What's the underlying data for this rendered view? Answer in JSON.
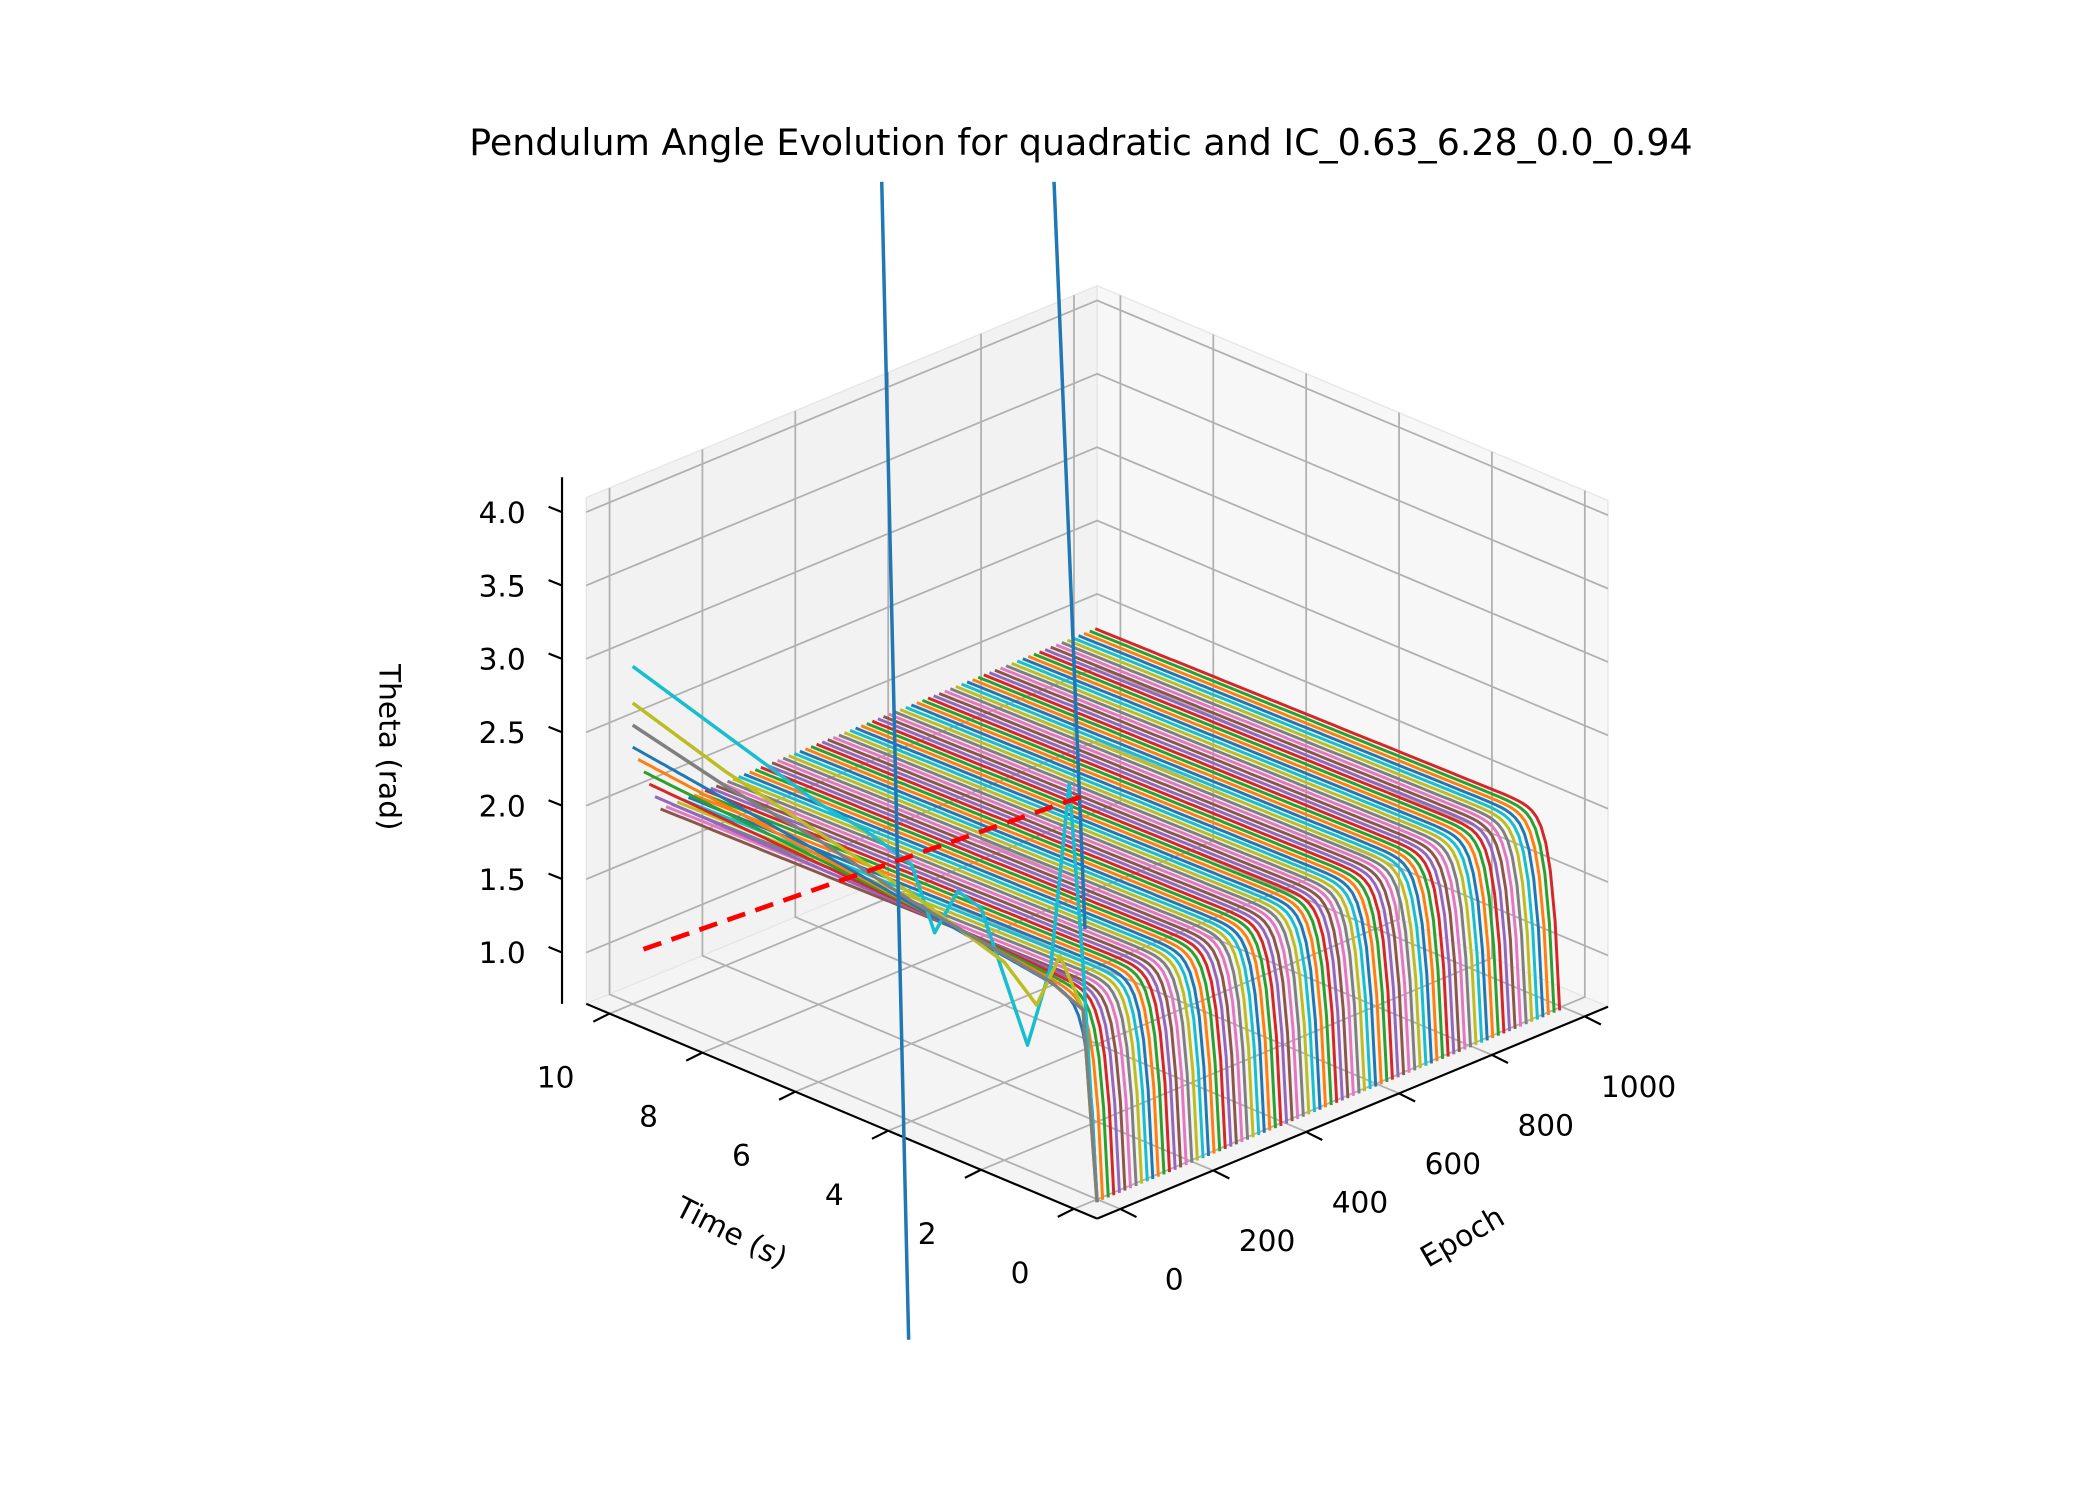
{
  "chart_data": {
    "type": "line",
    "projection": "3d",
    "title": "Pendulum Angle Evolution for quadratic and IC_0.63_6.28_0.0_0.94",
    "xlabel": "Time (s)",
    "ylabel": "Epoch",
    "zlabel": "Theta (rad)",
    "xlim": [
      -0.5,
      10.5
    ],
    "ylim": [
      -50,
      1050
    ],
    "zlim": [
      0.65,
      4.1
    ],
    "x_ticks": [
      "0",
      "2",
      "4",
      "6",
      "8",
      "10"
    ],
    "y_ticks": [
      "0",
      "200",
      "400",
      "600",
      "800",
      "1000"
    ],
    "z_ticks": [
      "1.0",
      "1.5",
      "2.0",
      "2.5",
      "3.0",
      "3.5",
      "4.0"
    ],
    "grid": true,
    "colors": [
      "#1f77b4",
      "#ff7f0e",
      "#2ca02c",
      "#d62728",
      "#9467bd",
      "#8c564b",
      "#e377c2",
      "#7f7f7f",
      "#bcbd22",
      "#17becf"
    ],
    "epoch_family": {
      "start": 0,
      "stop": 1000,
      "step": 12,
      "initial_theta": 0.63,
      "settled_theta": 1.95,
      "final_theta_late": 1.9
    },
    "highlight_series": [
      {
        "name": "epoch-early-cyan",
        "color": "#17becf",
        "t": [
          0,
          0.3,
          0.6,
          1,
          1.5,
          2,
          2.5,
          3,
          3.5,
          4,
          5,
          6,
          7,
          8,
          9,
          10
        ],
        "theta": [
          0.63,
          2.2,
          3.4,
          2.1,
          1.5,
          1.9,
          2.3,
          2.35,
          2.0,
          2.4,
          2.5,
          2.55,
          2.65,
          2.75,
          2.85,
          2.95
        ]
      },
      {
        "name": "epoch-early-olive",
        "color": "#bcbd22",
        "t": [
          0,
          0.3,
          0.8,
          1.3,
          2,
          3,
          4,
          6,
          8,
          10
        ],
        "theta": [
          0.63,
          1.9,
          2.2,
          1.8,
          2.0,
          2.1,
          2.2,
          2.35,
          2.5,
          2.7
        ]
      },
      {
        "name": "epoch-early-gray",
        "color": "#7f7f7f",
        "t": [
          0,
          0.3,
          1,
          2,
          4,
          6,
          8,
          10
        ],
        "theta": [
          0.63,
          1.9,
          2.0,
          2.05,
          2.15,
          2.3,
          2.4,
          2.55
        ]
      }
    ],
    "reference_line": {
      "color": "#ff0000",
      "style": "dashed"
    },
    "vertical_lines_color": "#1f77b4"
  }
}
